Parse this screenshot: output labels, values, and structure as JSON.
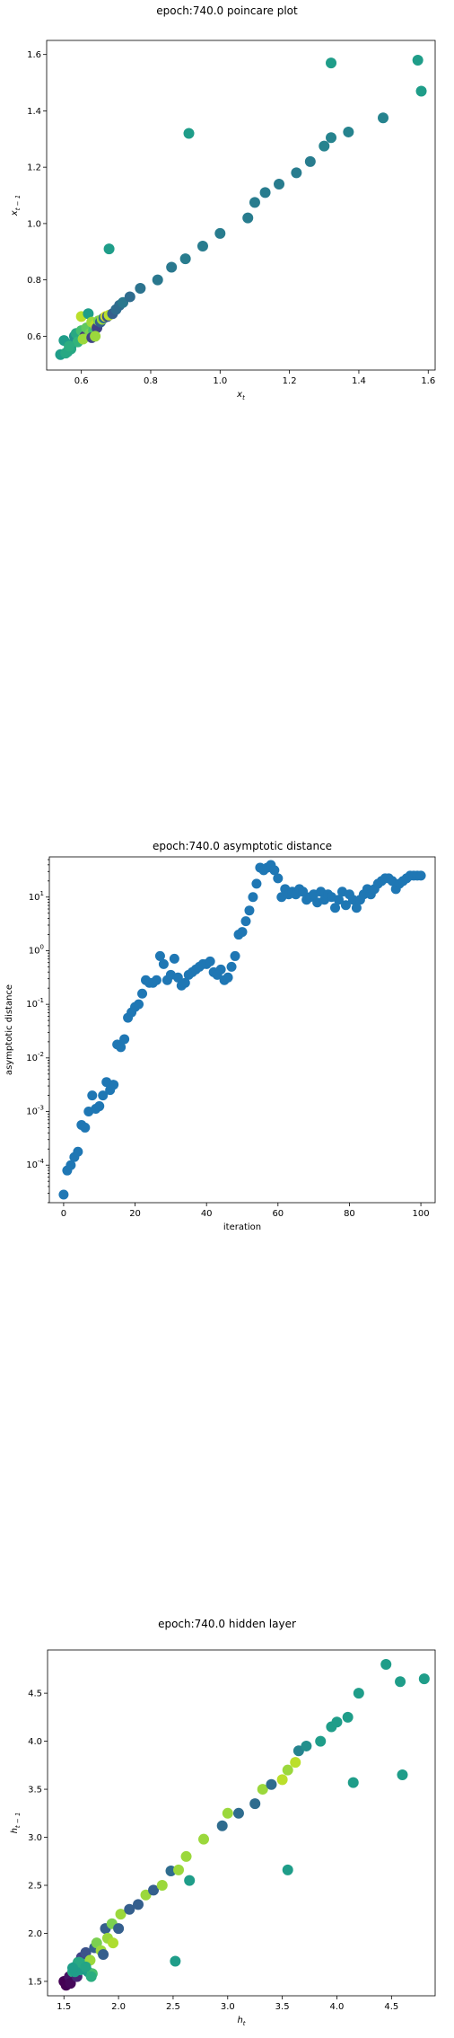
{
  "chart_data": [
    {
      "type": "scatter",
      "title": "epoch:740.0 poincare plot",
      "xlabel": "x",
      "xlabel_sub": "t",
      "ylabel": "x",
      "ylabel_sub": "t − 1",
      "xlim": [
        0.5,
        1.62
      ],
      "ylim": [
        0.48,
        1.65
      ],
      "xticks": [
        "0.6",
        "0.8",
        "1.0",
        "1.2",
        "1.4",
        "1.6"
      ],
      "xtick_values": [
        0.6,
        0.8,
        1.0,
        1.2,
        1.4,
        1.6
      ],
      "yticks": [
        "0.6",
        "0.8",
        "1.0",
        "1.2",
        "1.4",
        "1.6"
      ],
      "ytick_values": [
        0.6,
        0.8,
        1.0,
        1.2,
        1.4,
        1.6
      ],
      "grid": false,
      "colormap": "viridis",
      "points": [
        [
          0.54,
          0.535,
          0.55
        ],
        [
          0.55,
          0.585,
          0.55
        ],
        [
          0.56,
          0.545,
          0.55
        ],
        [
          0.57,
          0.555,
          0.6
        ],
        [
          0.575,
          0.575,
          0.55
        ],
        [
          0.58,
          0.6,
          0.5
        ],
        [
          0.585,
          0.61,
          0.6
        ],
        [
          0.59,
          0.58,
          0.65
        ],
        [
          0.6,
          0.62,
          0.7
        ],
        [
          0.6,
          0.67,
          0.9
        ],
        [
          0.61,
          0.6,
          0.15
        ],
        [
          0.615,
          0.63,
          0.75
        ],
        [
          0.62,
          0.68,
          0.55
        ],
        [
          0.625,
          0.61,
          0.8
        ],
        [
          0.63,
          0.65,
          0.85
        ],
        [
          0.635,
          0.62,
          0.7
        ],
        [
          0.64,
          0.64,
          0.9
        ],
        [
          0.645,
          0.63,
          0.2
        ],
        [
          0.65,
          0.655,
          0.8
        ],
        [
          0.655,
          0.65,
          0.3
        ],
        [
          0.66,
          0.66,
          0.85
        ],
        [
          0.665,
          0.665,
          0.35
        ],
        [
          0.67,
          0.67,
          0.95
        ],
        [
          0.675,
          0.67,
          0.25
        ],
        [
          0.68,
          0.675,
          0.9
        ],
        [
          0.69,
          0.68,
          0.3
        ],
        [
          0.7,
          0.695,
          0.35
        ],
        [
          0.71,
          0.71,
          0.35
        ],
        [
          0.72,
          0.72,
          0.4
        ],
        [
          0.74,
          0.74,
          0.35
        ],
        [
          0.77,
          0.77,
          0.38
        ],
        [
          0.82,
          0.8,
          0.4
        ],
        [
          0.86,
          0.845,
          0.4
        ],
        [
          0.9,
          0.875,
          0.42
        ],
        [
          0.95,
          0.92,
          0.42
        ],
        [
          1.0,
          0.965,
          0.42
        ],
        [
          1.08,
          1.02,
          0.42
        ],
        [
          1.1,
          1.075,
          0.42
        ],
        [
          1.13,
          1.11,
          0.42
        ],
        [
          1.17,
          1.14,
          0.42
        ],
        [
          1.22,
          1.18,
          0.42
        ],
        [
          1.26,
          1.22,
          0.42
        ],
        [
          1.3,
          1.275,
          0.45
        ],
        [
          1.32,
          1.305,
          0.45
        ],
        [
          1.37,
          1.325,
          0.45
        ],
        [
          1.47,
          1.375,
          0.45
        ],
        [
          1.58,
          1.47,
          0.55
        ],
        [
          1.57,
          1.58,
          0.55
        ],
        [
          1.32,
          1.57,
          0.55
        ],
        [
          0.91,
          1.32,
          0.55
        ],
        [
          0.68,
          0.91,
          0.55
        ],
        [
          0.555,
          0.54,
          0.6
        ],
        [
          0.565,
          0.565,
          0.62
        ],
        [
          0.605,
          0.59,
          0.85
        ],
        [
          0.63,
          0.595,
          0.2
        ],
        [
          0.64,
          0.6,
          0.85
        ]
      ]
    },
    {
      "type": "scatter",
      "title": "epoch:740.0 asymptotic distance",
      "xlabel": "iteration",
      "ylabel": "asymptotic distance",
      "yscale": "log",
      "xlim": [
        -4,
        104
      ],
      "ylim_log10": [
        -4.7,
        1.75
      ],
      "xticks": [
        "0",
        "20",
        "40",
        "60",
        "80",
        "100"
      ],
      "xtick_values": [
        0,
        20,
        40,
        60,
        80,
        100
      ],
      "ytick_exponents": [
        -4,
        -3,
        -2,
        -1,
        0,
        1
      ],
      "ytick_base": "10",
      "grid": false,
      "color": "#1f77b4",
      "y_log10": [
        -4.55,
        -4.1,
        -4.0,
        -3.85,
        -3.75,
        -3.25,
        -3.3,
        -3.0,
        -2.7,
        -2.95,
        -2.9,
        -2.7,
        -2.45,
        -2.6,
        -2.5,
        -1.75,
        -1.8,
        -1.65,
        -1.25,
        -1.15,
        -1.05,
        -1.0,
        -0.8,
        -0.55,
        -0.6,
        -0.6,
        -0.55,
        -0.1,
        -0.25,
        -0.55,
        -0.45,
        -0.15,
        -0.5,
        -0.65,
        -0.6,
        -0.45,
        -0.4,
        -0.35,
        -0.3,
        -0.25,
        -0.25,
        -0.2,
        -0.4,
        -0.45,
        -0.35,
        -0.55,
        -0.5,
        -0.3,
        -0.1,
        0.3,
        0.35,
        0.55,
        0.75,
        1.0,
        1.25,
        1.55,
        1.5,
        1.55,
        1.6,
        1.5,
        1.35,
        1.0,
        1.15,
        1.05,
        1.1,
        1.05,
        1.15,
        1.1,
        0.95,
        1.0,
        1.05,
        0.9,
        1.1,
        0.95,
        1.05,
        1.0,
        0.8,
        0.95,
        1.1,
        0.85,
        1.05,
        0.95,
        0.8,
        0.95,
        1.05,
        1.15,
        1.05,
        1.15,
        1.25,
        1.3,
        1.35,
        1.35,
        1.3,
        1.15,
        1.25,
        1.3,
        1.35,
        1.4,
        1.4,
        1.4,
        1.4
      ]
    },
    {
      "type": "scatter",
      "title": "epoch:740.0 hidden layer",
      "xlabel": "h",
      "xlabel_sub": "t",
      "ylabel": "h",
      "ylabel_sub": "t − 1",
      "xlim": [
        1.35,
        4.9
      ],
      "ylim": [
        1.35,
        4.95
      ],
      "xticks": [
        "1.5",
        "2.0",
        "2.5",
        "3.0",
        "3.5",
        "4.0",
        "4.5"
      ],
      "xtick_values": [
        1.5,
        2.0,
        2.5,
        3.0,
        3.5,
        4.0,
        4.5
      ],
      "yticks": [
        "1.5",
        "2.0",
        "2.5",
        "3.0",
        "3.5",
        "4.0",
        "4.5"
      ],
      "ytick_values": [
        1.5,
        2.0,
        2.5,
        3.0,
        3.5,
        4.0,
        4.5
      ],
      "grid": false,
      "colormap": "viridis",
      "points": [
        [
          1.5,
          1.5,
          0.0
        ],
        [
          1.52,
          1.46,
          0.0
        ],
        [
          1.55,
          1.55,
          0.05
        ],
        [
          1.56,
          1.48,
          0.02
        ],
        [
          1.58,
          1.6,
          0.6
        ],
        [
          1.6,
          1.65,
          0.55
        ],
        [
          1.62,
          1.55,
          0.1
        ],
        [
          1.63,
          1.7,
          0.6
        ],
        [
          1.65,
          1.62,
          0.55
        ],
        [
          1.66,
          1.75,
          0.2
        ],
        [
          1.68,
          1.68,
          0.6
        ],
        [
          1.7,
          1.8,
          0.25
        ],
        [
          1.72,
          1.6,
          0.55
        ],
        [
          1.74,
          1.72,
          0.85
        ],
        [
          1.76,
          1.58,
          0.7
        ],
        [
          1.78,
          1.85,
          0.3
        ],
        [
          1.8,
          1.9,
          0.8
        ],
        [
          1.84,
          1.82,
          0.85
        ],
        [
          1.88,
          2.05,
          0.3
        ],
        [
          1.9,
          1.95,
          0.85
        ],
        [
          1.94,
          2.1,
          0.8
        ],
        [
          2.0,
          2.05,
          0.3
        ],
        [
          2.02,
          2.2,
          0.85
        ],
        [
          2.1,
          2.25,
          0.3
        ],
        [
          2.18,
          2.3,
          0.3
        ],
        [
          2.25,
          2.4,
          0.85
        ],
        [
          2.32,
          2.45,
          0.3
        ],
        [
          2.4,
          2.5,
          0.85
        ],
        [
          2.48,
          2.65,
          0.35
        ],
        [
          2.55,
          2.66,
          0.85
        ],
        [
          2.62,
          2.8,
          0.85
        ],
        [
          2.65,
          2.55,
          0.55
        ],
        [
          2.78,
          2.98,
          0.85
        ],
        [
          2.95,
          3.12,
          0.35
        ],
        [
          3.0,
          3.25,
          0.85
        ],
        [
          3.1,
          3.25,
          0.35
        ],
        [
          3.25,
          3.35,
          0.35
        ],
        [
          3.32,
          3.5,
          0.85
        ],
        [
          3.4,
          3.55,
          0.35
        ],
        [
          3.5,
          3.6,
          0.9
        ],
        [
          3.55,
          3.7,
          0.85
        ],
        [
          3.62,
          3.78,
          0.9
        ],
        [
          3.65,
          3.9,
          0.45
        ],
        [
          3.72,
          3.95,
          0.5
        ],
        [
          3.85,
          4.0,
          0.55
        ],
        [
          3.95,
          4.15,
          0.55
        ],
        [
          4.0,
          4.2,
          0.55
        ],
        [
          4.1,
          4.25,
          0.55
        ],
        [
          4.2,
          4.5,
          0.55
        ],
        [
          4.45,
          4.8,
          0.55
        ],
        [
          4.58,
          4.62,
          0.55
        ],
        [
          4.8,
          4.65,
          0.55
        ],
        [
          4.6,
          3.65,
          0.55
        ],
        [
          4.15,
          3.57,
          0.55
        ],
        [
          3.55,
          2.66,
          0.55
        ],
        [
          2.52,
          1.71,
          0.55
        ],
        [
          1.6,
          1.6,
          0.55
        ],
        [
          1.64,
          1.7,
          0.6
        ],
        [
          1.7,
          1.65,
          0.58
        ],
        [
          1.75,
          1.55,
          0.62
        ],
        [
          1.58,
          1.64,
          0.55
        ],
        [
          1.86,
          1.78,
          0.3
        ],
        [
          1.95,
          1.9,
          0.88
        ]
      ]
    }
  ]
}
